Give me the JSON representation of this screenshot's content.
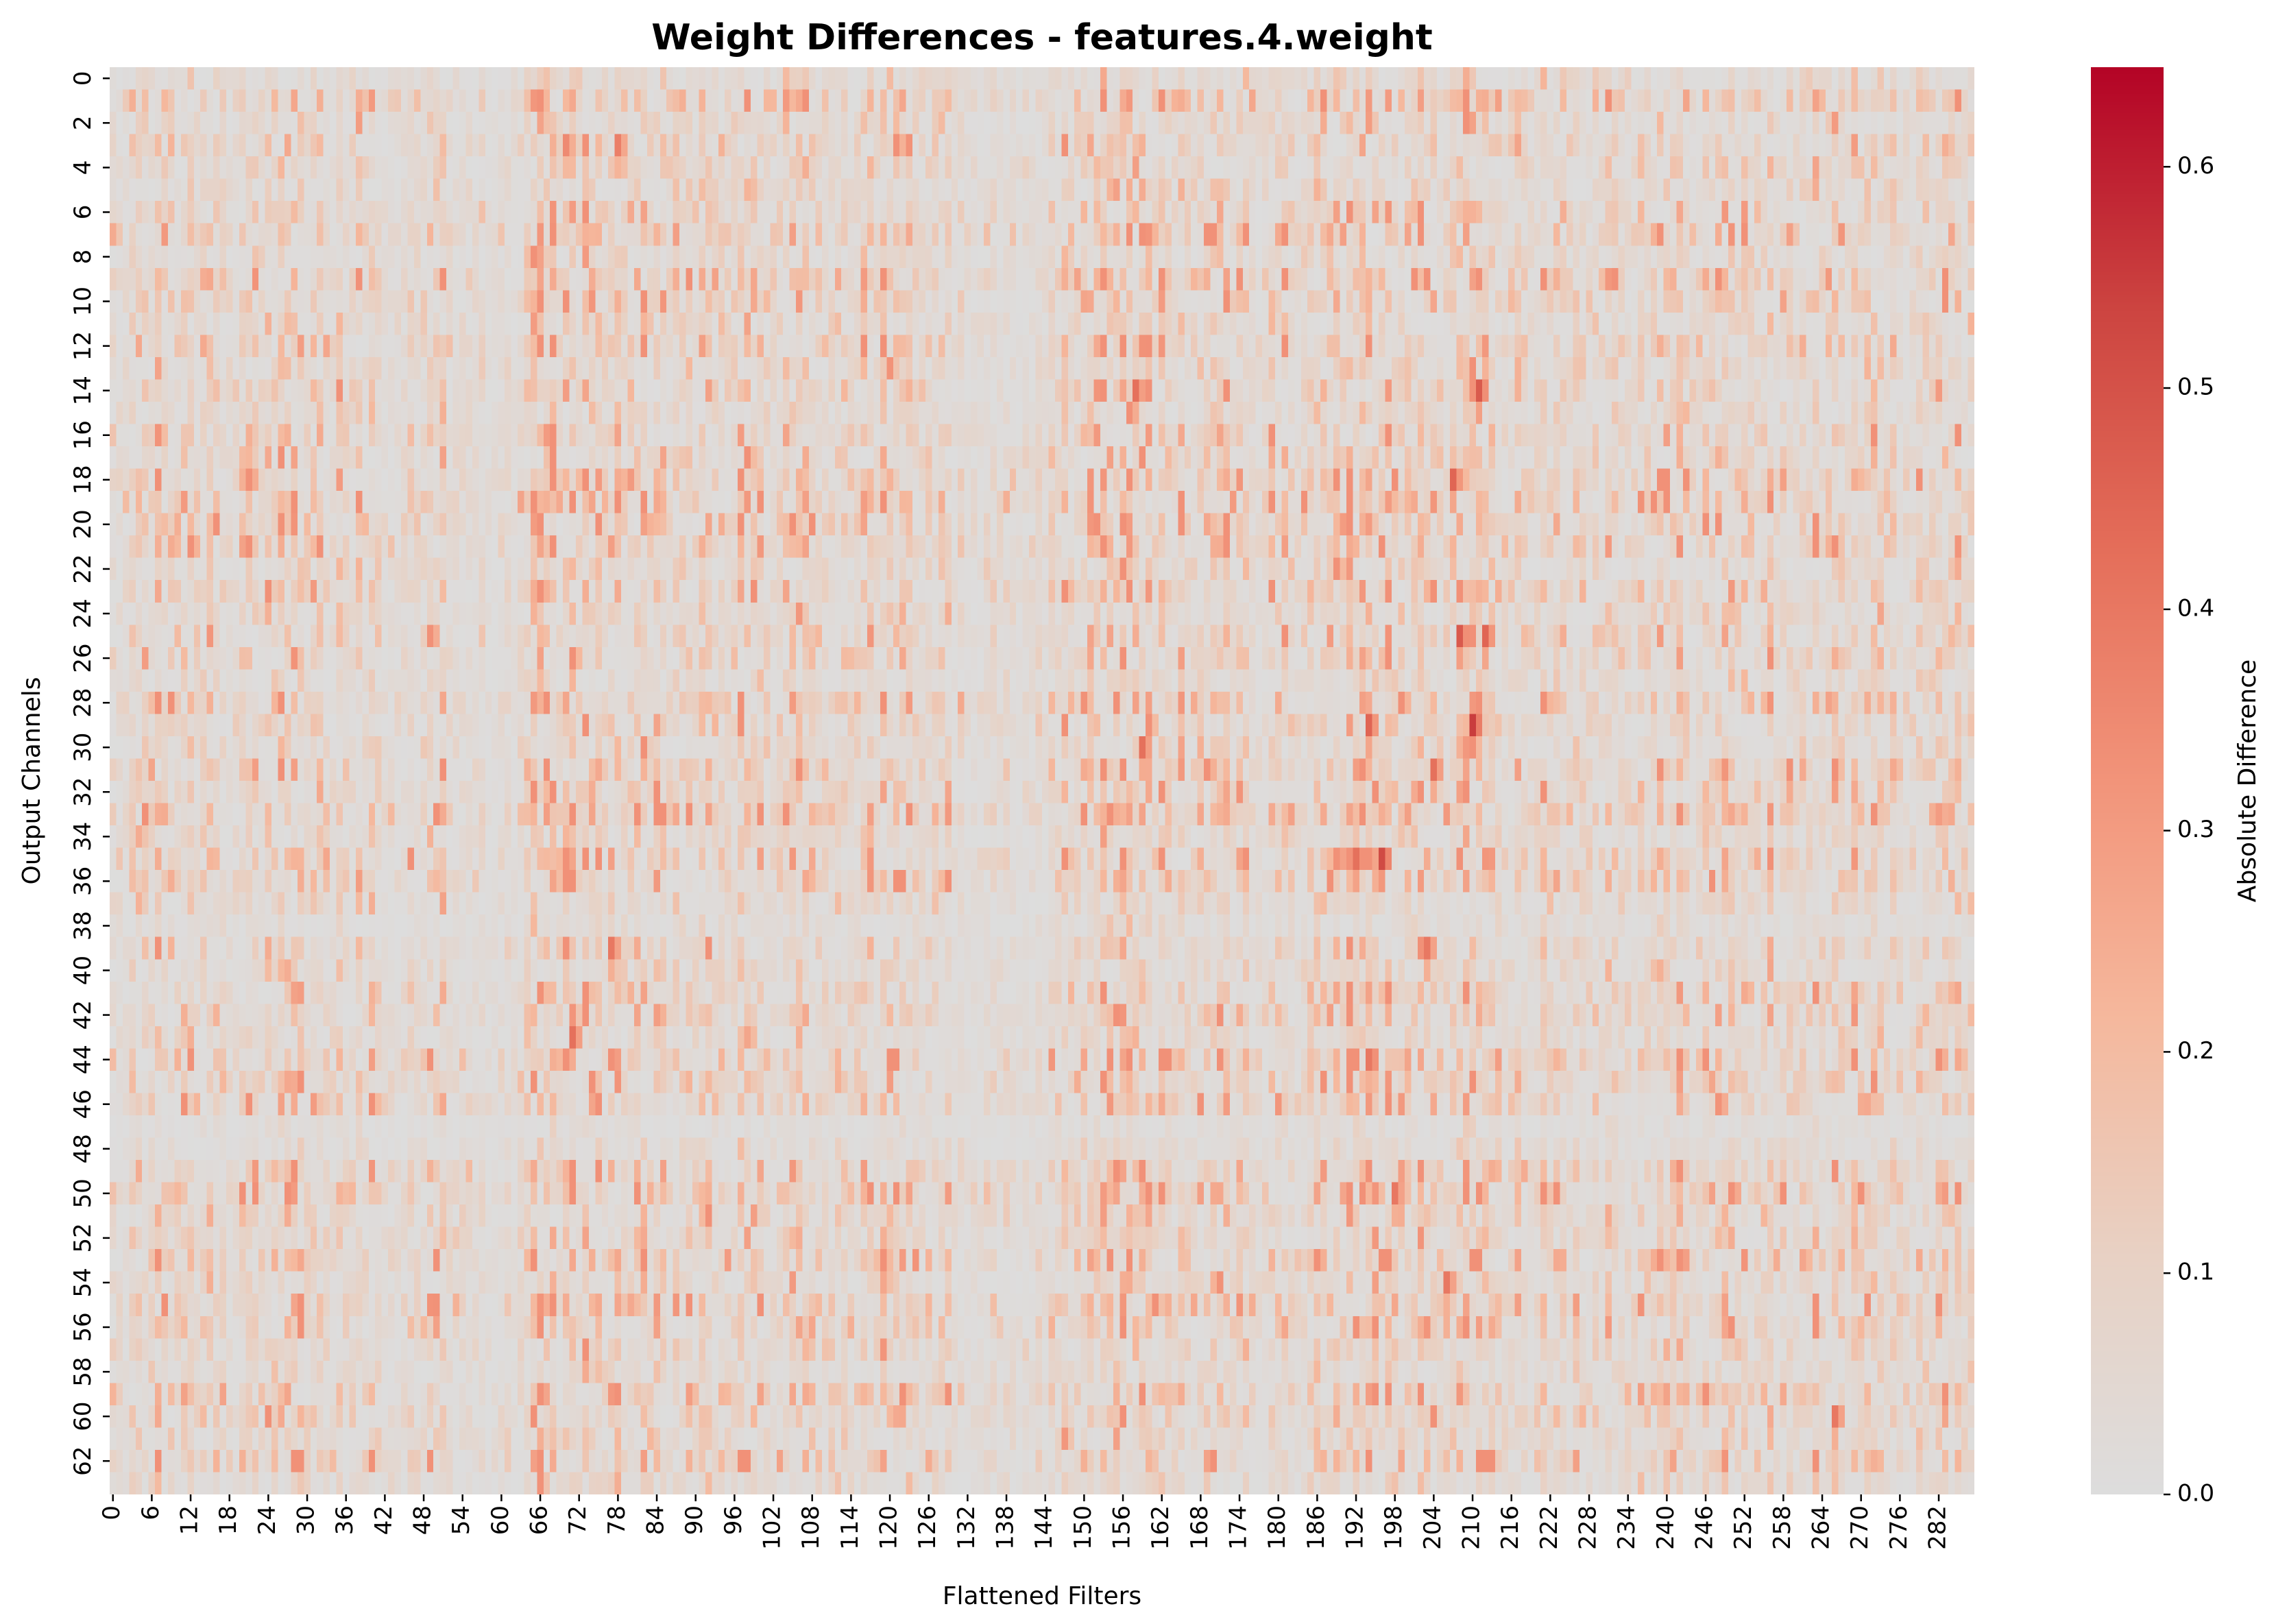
{
  "chart_data": {
    "type": "heatmap",
    "title": "Weight Differences - features.4.weight",
    "xlabel": "Flattened Filters",
    "ylabel": "Output Channels",
    "colorbar_label": "Absolute Difference",
    "n_rows": 64,
    "n_cols": 288,
    "vmin": 0.0,
    "vmax": 0.645,
    "colormap": "coolwarm-upper-half",
    "colormap_stops": [
      "#dddddd",
      "#e8d1c4",
      "#f5b89d",
      "#f2947a",
      "#e46d59",
      "#cc4440",
      "#b40426"
    ],
    "x_tick_labels": [
      "0",
      "6",
      "12",
      "18",
      "24",
      "30",
      "36",
      "42",
      "48",
      "54",
      "60",
      "66",
      "72",
      "78",
      "84",
      "90",
      "96",
      "102",
      "108",
      "114",
      "120",
      "126",
      "132",
      "138",
      "144",
      "150",
      "156",
      "162",
      "168",
      "174",
      "180",
      "186",
      "192",
      "198",
      "204",
      "210",
      "216",
      "222",
      "228",
      "234",
      "240",
      "246",
      "252",
      "258",
      "264",
      "270",
      "276",
      "282"
    ],
    "y_tick_labels": [
      "0",
      "2",
      "4",
      "6",
      "8",
      "10",
      "12",
      "14",
      "16",
      "18",
      "20",
      "22",
      "24",
      "26",
      "28",
      "30",
      "32",
      "34",
      "36",
      "38",
      "40",
      "42",
      "44",
      "46",
      "48",
      "50",
      "52",
      "54",
      "56",
      "58",
      "60",
      "62"
    ],
    "colorbar_ticks": [
      "0.0",
      "0.1",
      "0.2",
      "0.3",
      "0.4",
      "0.5",
      "0.6"
    ],
    "values_note": "Per-cell values are dense (64 x 288); approximate distribution: mostly 0.0-0.2 with scattered hotspots up to ~0.6",
    "hotspots": [
      {
        "row": 3,
        "col": 70,
        "value": 0.35
      },
      {
        "row": 3,
        "col": 78,
        "value": 0.38
      },
      {
        "row": 7,
        "col": 160,
        "value": 0.32
      },
      {
        "row": 14,
        "col": 158,
        "value": 0.42
      },
      {
        "row": 14,
        "col": 211,
        "value": 0.48
      },
      {
        "row": 18,
        "col": 207,
        "value": 0.45
      },
      {
        "row": 25,
        "col": 208,
        "value": 0.48
      },
      {
        "row": 25,
        "col": 212,
        "value": 0.45
      },
      {
        "row": 29,
        "col": 194,
        "value": 0.45
      },
      {
        "row": 29,
        "col": 210,
        "value": 0.55
      },
      {
        "row": 30,
        "col": 159,
        "value": 0.42
      },
      {
        "row": 31,
        "col": 204,
        "value": 0.42
      },
      {
        "row": 35,
        "col": 192,
        "value": 0.42
      },
      {
        "row": 35,
        "col": 196,
        "value": 0.52
      },
      {
        "row": 39,
        "col": 77,
        "value": 0.4
      },
      {
        "row": 39,
        "col": 203,
        "value": 0.4
      },
      {
        "row": 43,
        "col": 71,
        "value": 0.42
      },
      {
        "row": 44,
        "col": 194,
        "value": 0.4
      },
      {
        "row": 50,
        "col": 198,
        "value": 0.4
      },
      {
        "row": 54,
        "col": 206,
        "value": 0.4
      },
      {
        "row": 60,
        "col": 266,
        "value": 0.4
      }
    ]
  }
}
